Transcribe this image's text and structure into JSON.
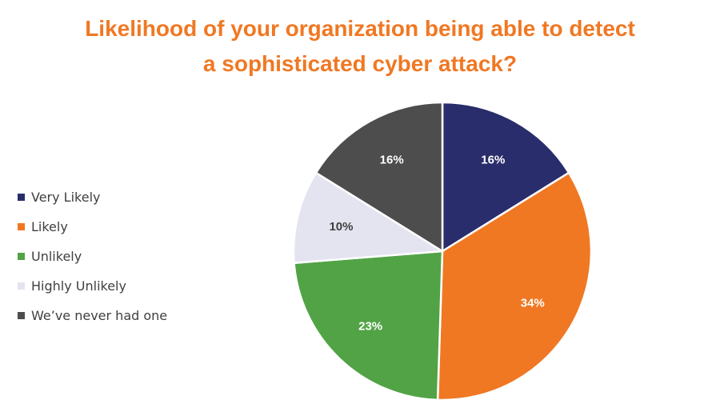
{
  "chart_data": {
    "type": "pie",
    "title_lines": [
      "Likelihood of your organization being able to detect",
      "a sophisticated cyber attack?"
    ],
    "categories": [
      "Very Likely",
      "Likely",
      "Unlikely",
      "Highly Unlikely",
      "We’ve never had one"
    ],
    "values": [
      16,
      34,
      23,
      10,
      16
    ],
    "labels": [
      "16%",
      "34%",
      "23%",
      "10%",
      "16%"
    ],
    "colors": [
      "#2A2D6B",
      "#F07823",
      "#52A346",
      "#E3E4F0",
      "#4D4D4D"
    ],
    "label_colors": [
      "#ffffff",
      "#ffffff",
      "#ffffff",
      "#404040",
      "#ffffff"
    ],
    "legend_position": "left"
  }
}
